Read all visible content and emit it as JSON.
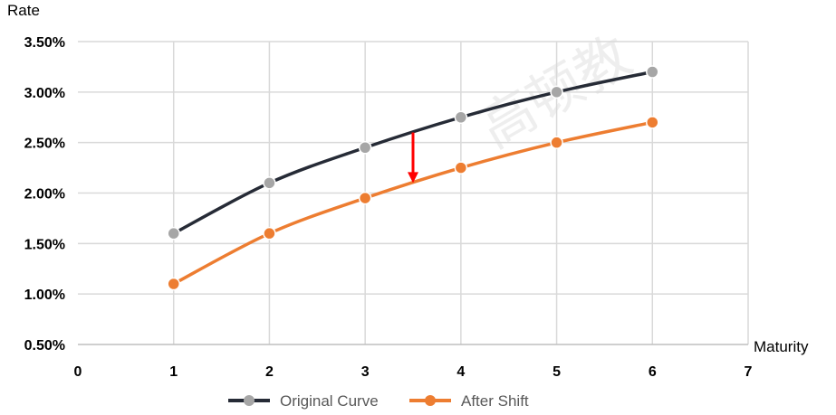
{
  "chart_data": {
    "type": "line",
    "title": "",
    "xlabel": "Maturity",
    "ylabel": "Rate",
    "xlim": [
      0,
      7
    ],
    "ylim": [
      0.5,
      3.5
    ],
    "x_ticks": [
      0,
      1,
      2,
      3,
      4,
      5,
      6,
      7
    ],
    "x_tick_labels": [
      "0",
      "1",
      "2",
      "3",
      "4",
      "5",
      "6",
      "7"
    ],
    "y_ticks": [
      0.5,
      1.0,
      1.5,
      2.0,
      2.5,
      3.0,
      3.5
    ],
    "y_tick_labels": [
      "0.50%",
      "1.00%",
      "1.50%",
      "2.00%",
      "2.50%",
      "3.00%",
      "3.50%"
    ],
    "grid": true,
    "legend_position": "bottom",
    "series": [
      {
        "name": "Original Curve",
        "color": "#262b36",
        "marker_color": "#a6a6a6",
        "x": [
          1,
          2,
          3,
          4,
          5,
          6
        ],
        "values": [
          1.6,
          2.1,
          2.45,
          2.75,
          3.0,
          3.2
        ]
      },
      {
        "name": "After Shift",
        "color": "#ed7d31",
        "marker_color": "#ed7d31",
        "x": [
          1,
          2,
          3,
          4,
          5,
          6
        ],
        "values": [
          1.1,
          1.6,
          1.95,
          2.25,
          2.5,
          2.7
        ]
      }
    ],
    "annotation": {
      "type": "arrow",
      "color": "#ff0000",
      "x": 3.5,
      "from": 2.6,
      "to": 2.1
    }
  }
}
